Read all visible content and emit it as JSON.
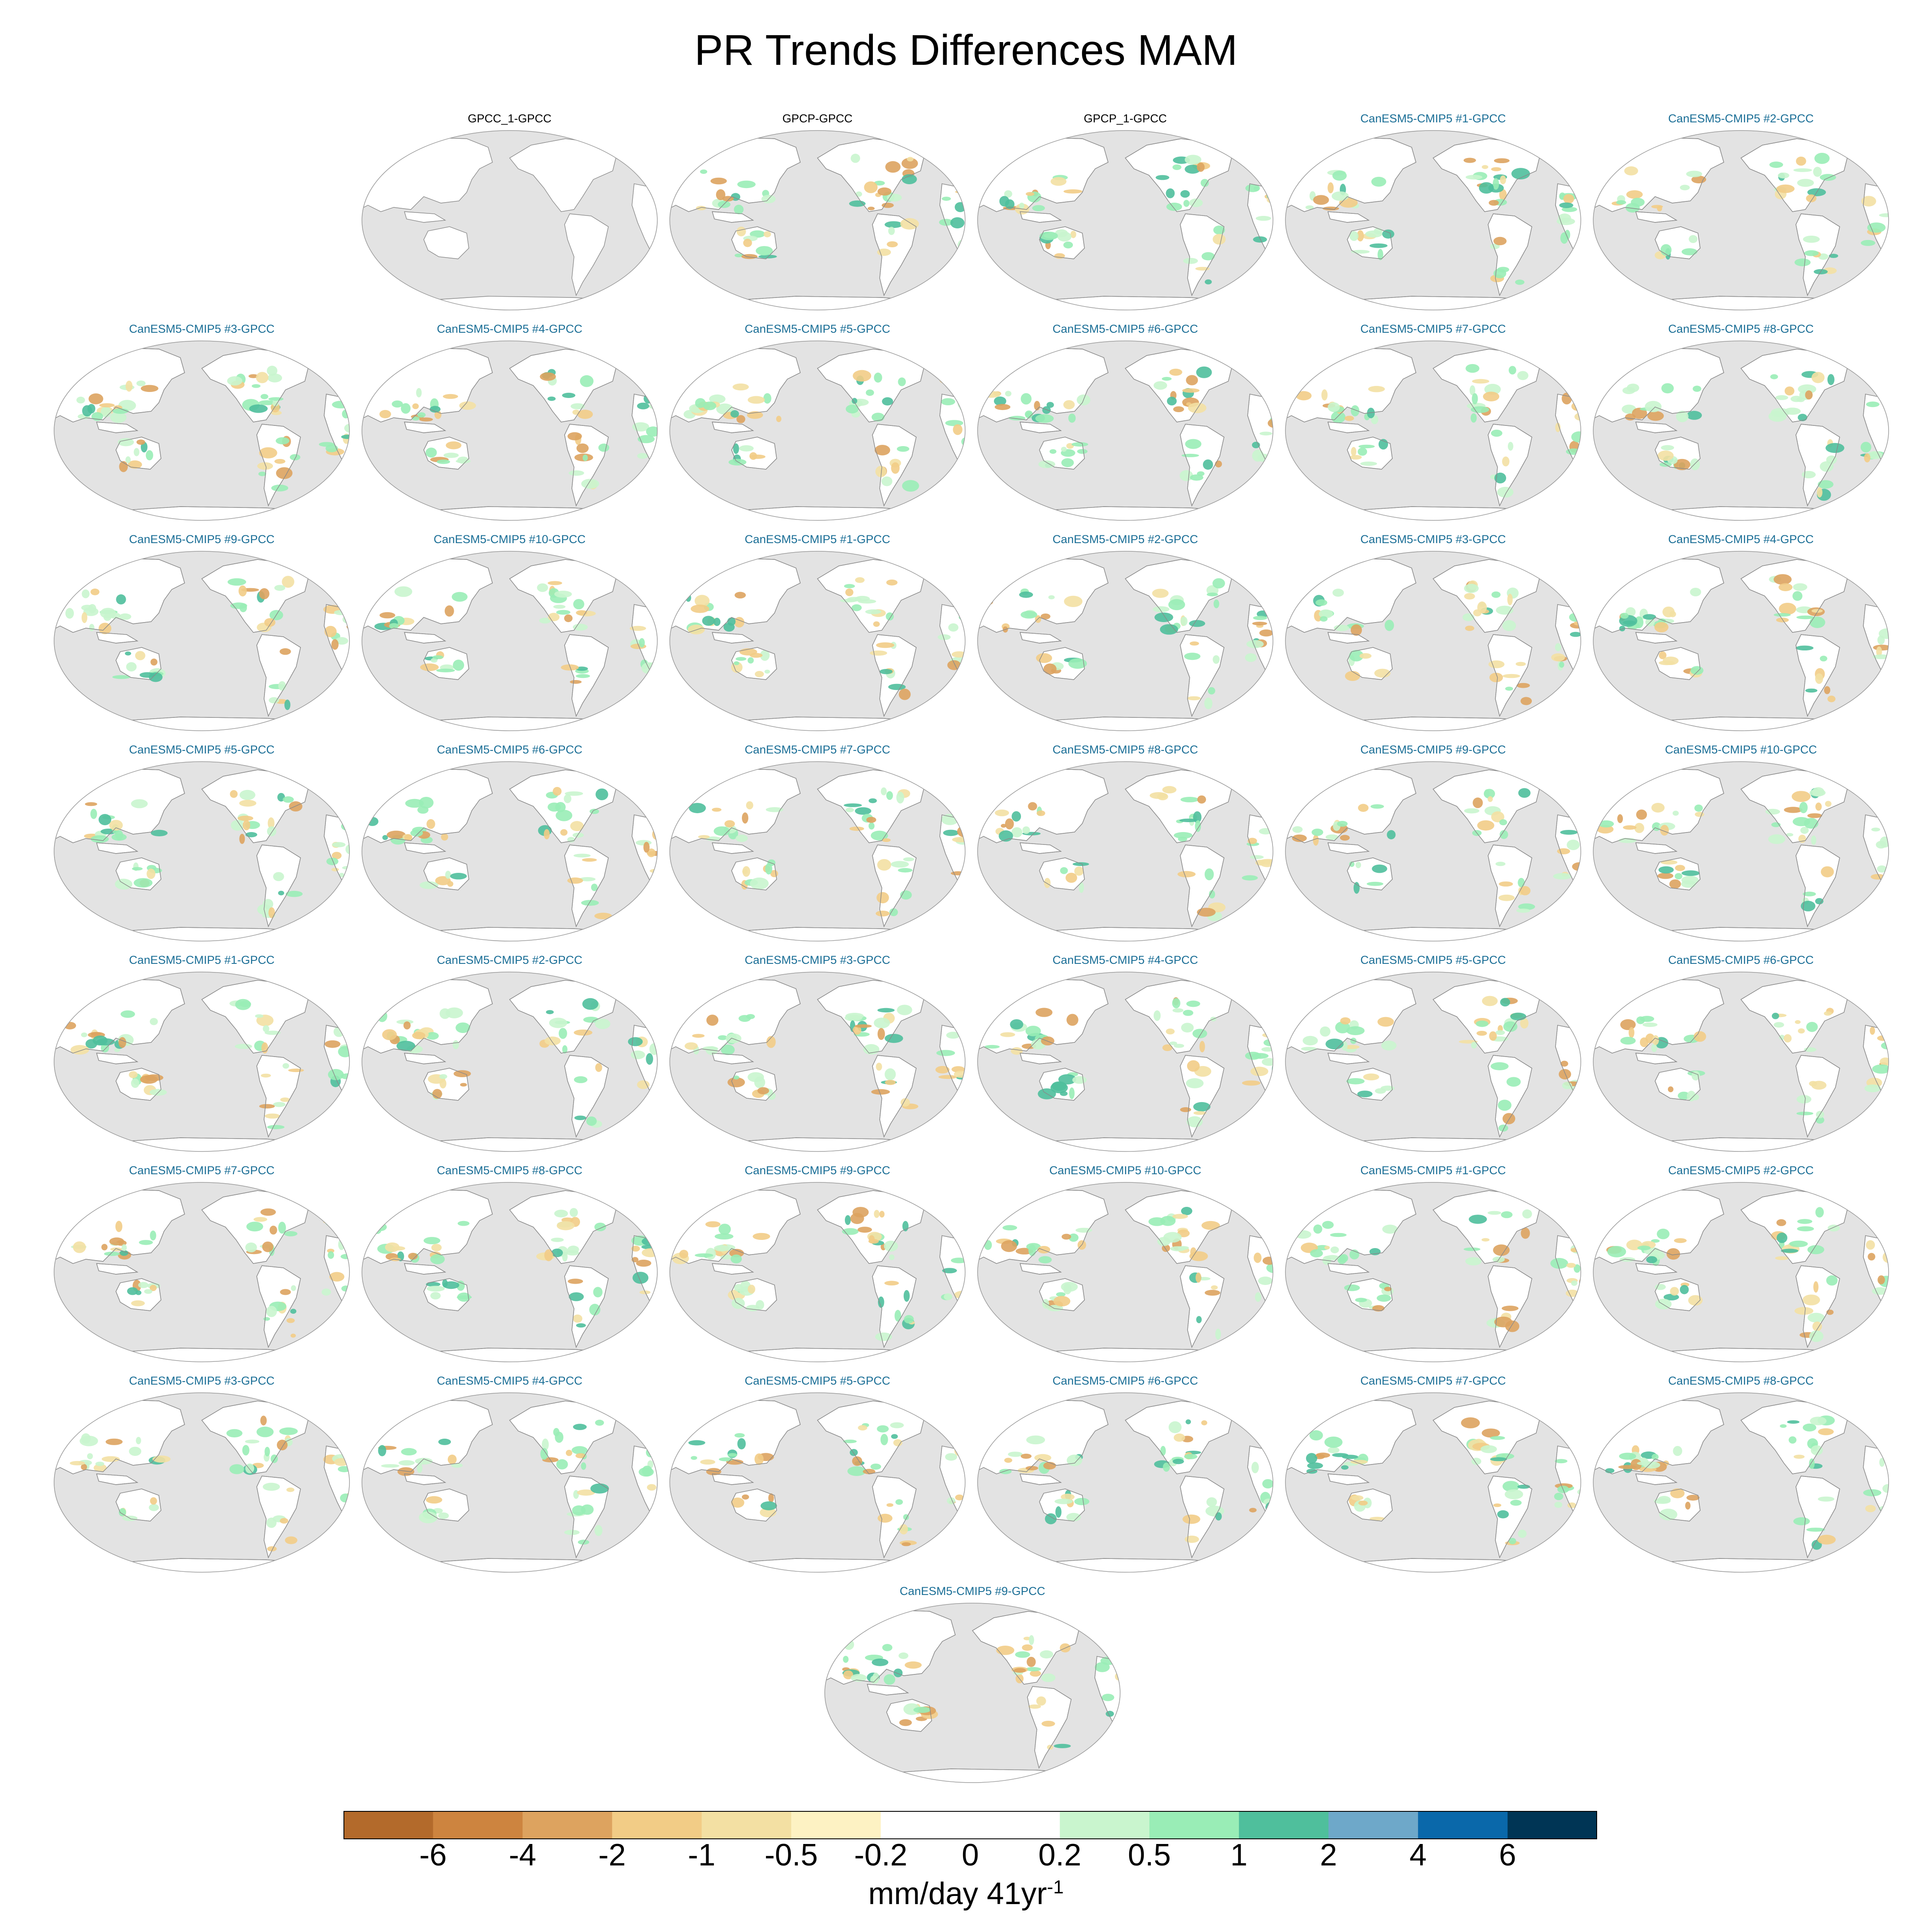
{
  "title": "PR Trends Differences MAM",
  "panels": [
    {
      "label": "GPCC_1-GPCC",
      "kind": "obs",
      "blank": true
    },
    {
      "label": "GPCP-GPCC",
      "kind": "obs"
    },
    {
      "label": "GPCP_1-GPCC",
      "kind": "obs"
    },
    {
      "label": "CanESM5-CMIP5 #1-GPCC",
      "kind": "model"
    },
    {
      "label": "CanESM5-CMIP5 #2-GPCC",
      "kind": "model"
    },
    {
      "label": "CanESM5-CMIP5 #3-GPCC",
      "kind": "model"
    },
    {
      "label": "CanESM5-CMIP5 #4-GPCC",
      "kind": "model"
    },
    {
      "label": "CanESM5-CMIP5 #5-GPCC",
      "kind": "model"
    },
    {
      "label": "CanESM5-CMIP5 #6-GPCC",
      "kind": "model"
    },
    {
      "label": "CanESM5-CMIP5 #7-GPCC",
      "kind": "model"
    },
    {
      "label": "CanESM5-CMIP5 #8-GPCC",
      "kind": "model"
    },
    {
      "label": "CanESM5-CMIP5 #9-GPCC",
      "kind": "model"
    },
    {
      "label": "CanESM5-CMIP5 #10-GPCC",
      "kind": "model"
    },
    {
      "label": "CanESM5-CMIP5 #1-GPCC",
      "kind": "model"
    },
    {
      "label": "CanESM5-CMIP5 #2-GPCC",
      "kind": "model"
    },
    {
      "label": "CanESM5-CMIP5 #3-GPCC",
      "kind": "model"
    },
    {
      "label": "CanESM5-CMIP5 #4-GPCC",
      "kind": "model"
    },
    {
      "label": "CanESM5-CMIP5 #5-GPCC",
      "kind": "model"
    },
    {
      "label": "CanESM5-CMIP5 #6-GPCC",
      "kind": "model"
    },
    {
      "label": "CanESM5-CMIP5 #7-GPCC",
      "kind": "model"
    },
    {
      "label": "CanESM5-CMIP5 #8-GPCC",
      "kind": "model"
    },
    {
      "label": "CanESM5-CMIP5 #9-GPCC",
      "kind": "model"
    },
    {
      "label": "CanESM5-CMIP5 #10-GPCC",
      "kind": "model"
    },
    {
      "label": "CanESM5-CMIP5 #1-GPCC",
      "kind": "model"
    },
    {
      "label": "CanESM5-CMIP5 #2-GPCC",
      "kind": "model"
    },
    {
      "label": "CanESM5-CMIP5 #3-GPCC",
      "kind": "model"
    },
    {
      "label": "CanESM5-CMIP5 #4-GPCC",
      "kind": "model"
    },
    {
      "label": "CanESM5-CMIP5 #5-GPCC",
      "kind": "model"
    },
    {
      "label": "CanESM5-CMIP5 #6-GPCC",
      "kind": "model"
    },
    {
      "label": "CanESM5-CMIP5 #7-GPCC",
      "kind": "model"
    },
    {
      "label": "CanESM5-CMIP5 #8-GPCC",
      "kind": "model"
    },
    {
      "label": "CanESM5-CMIP5 #9-GPCC",
      "kind": "model"
    },
    {
      "label": "CanESM5-CMIP5 #10-GPCC",
      "kind": "model"
    },
    {
      "label": "CanESM5-CMIP5 #1-GPCC",
      "kind": "model"
    },
    {
      "label": "CanESM5-CMIP5 #2-GPCC",
      "kind": "model"
    },
    {
      "label": "CanESM5-CMIP5 #3-GPCC",
      "kind": "model"
    },
    {
      "label": "CanESM5-CMIP5 #4-GPCC",
      "kind": "model"
    },
    {
      "label": "CanESM5-CMIP5 #5-GPCC",
      "kind": "model"
    },
    {
      "label": "CanESM5-CMIP5 #6-GPCC",
      "kind": "model"
    },
    {
      "label": "CanESM5-CMIP5 #7-GPCC",
      "kind": "model"
    },
    {
      "label": "CanESM5-CMIP5 #8-GPCC",
      "kind": "model"
    },
    {
      "label": "CanESM5-CMIP5 #9-GPCC",
      "kind": "model"
    }
  ],
  "colors": {
    "ocean": "#e3e3e3",
    "land": "#ffffff",
    "coast": "#8a8a8a",
    "obs_title": "#000000",
    "model_title": "#1a6e96"
  },
  "colorbar": {
    "unit_main": "mm/day 41yr",
    "unit_sup": "-1",
    "ticks": [
      "-6",
      "-4",
      "-2",
      "-1",
      "-0.5",
      "-0.2",
      "0",
      "0.2",
      "0.5",
      "1",
      "2",
      "4",
      "6"
    ],
    "colors": [
      "#b36a2b",
      "#cd843f",
      "#dda35f",
      "#f2cc86",
      "#f3e0a3",
      "#fdf2c3",
      "#ffffff",
      "#ffffff",
      "#c9f5ce",
      "#99edb6",
      "#4fbf9c",
      "#6ea8c9",
      "#0a68aa",
      "#003555"
    ]
  }
}
